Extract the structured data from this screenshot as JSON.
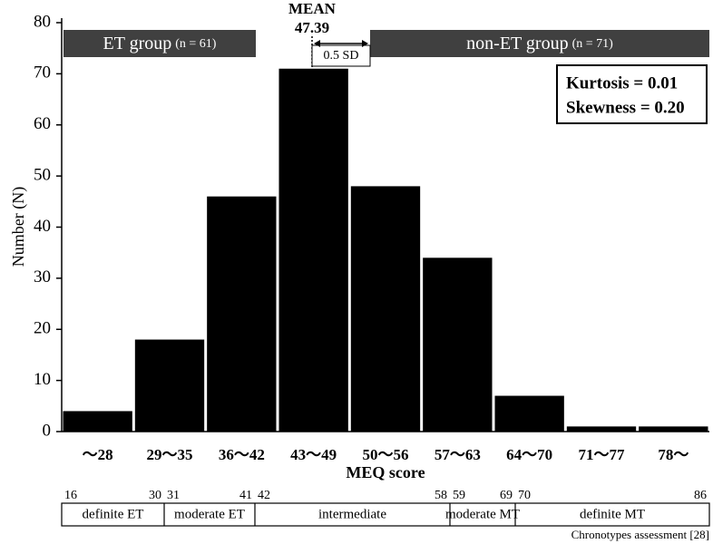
{
  "chart_data": {
    "type": "bar",
    "categories": [
      "～28",
      "29～35",
      "36～42",
      "43～49",
      "50～56",
      "57～63",
      "64～70",
      "71～77",
      "78～"
    ],
    "values": [
      4,
      18,
      46,
      71,
      48,
      34,
      7,
      1,
      1
    ],
    "color": "#000000",
    "ylim": [
      0,
      80
    ],
    "yticks": [
      0,
      10,
      20,
      30,
      40,
      50,
      60,
      70,
      80
    ],
    "ylabel": "Number (N)",
    "xlabel": "MEQ score",
    "annotations": {
      "mean_label": "MEAN",
      "mean_value": 47.39,
      "sd_label": "0.5 SD",
      "et_group": "ET group",
      "et_n": "(n = 61)",
      "non_et_group": "non-ET group",
      "non_et_n": "(n = 71)",
      "kurtosis": "Kurtosis = 0.01",
      "skewness": "Skewness = 0.20"
    }
  },
  "chronotypes": {
    "segments": [
      {
        "from": 16,
        "to": 30,
        "label": "definite ET"
      },
      {
        "from": 31,
        "to": 41,
        "label": "moderate ET"
      },
      {
        "from": 42,
        "to": 58,
        "label": "intermediate"
      },
      {
        "from": 59,
        "to": 69,
        "label": "moderate MT"
      },
      {
        "from": 70,
        "to": 86,
        "label": "definite MT"
      }
    ],
    "caption": "Chronotypes assessment [28]"
  }
}
